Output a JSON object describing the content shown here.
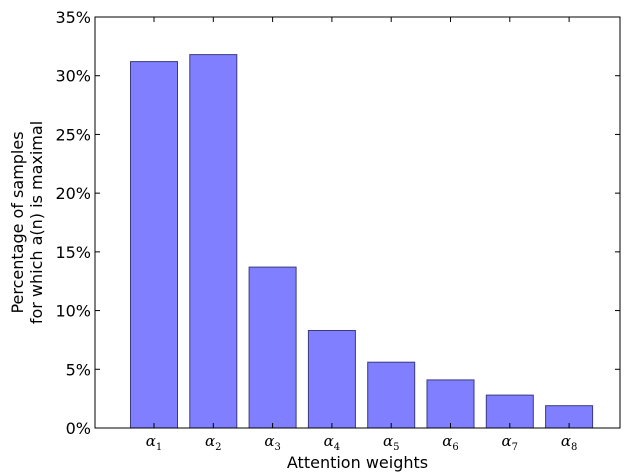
{
  "chart_data": {
    "type": "bar",
    "categories": [
      {
        "base": "α",
        "sub": "1"
      },
      {
        "base": "α",
        "sub": "2"
      },
      {
        "base": "α",
        "sub": "3"
      },
      {
        "base": "α",
        "sub": "4"
      },
      {
        "base": "α",
        "sub": "5"
      },
      {
        "base": "α",
        "sub": "6"
      },
      {
        "base": "α",
        "sub": "7"
      },
      {
        "base": "α",
        "sub": "8"
      }
    ],
    "values": [
      31.2,
      31.8,
      13.7,
      8.3,
      5.6,
      4.1,
      2.8,
      1.9
    ],
    "ylim": [
      0,
      35
    ],
    "yticks": [
      0,
      5,
      10,
      15,
      20,
      25,
      30,
      35
    ],
    "ytick_labels": [
      "0%",
      "5%",
      "10%",
      "15%",
      "20%",
      "25%",
      "30%",
      "35%"
    ],
    "xlabel": "Attention weights",
    "ylabel_lines": [
      "Percentage of samples",
      "for which a(n) is maximal"
    ],
    "grid": false,
    "bar_color": "#7f7fff",
    "bar_edge_color": "#3a3a80"
  }
}
